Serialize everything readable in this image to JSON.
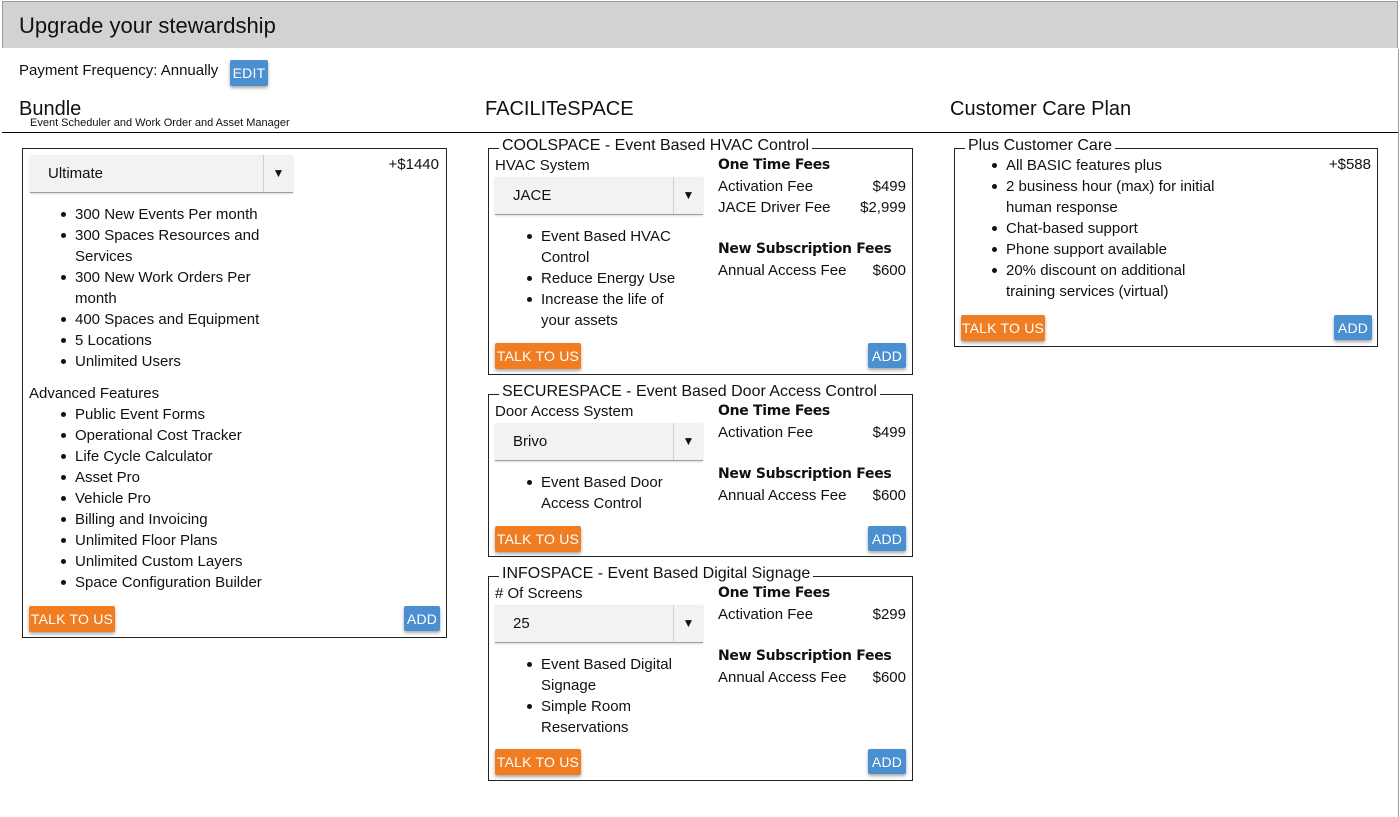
{
  "header": {
    "title": "Upgrade your stewardship"
  },
  "payment": {
    "label": "Payment Frequency: Annually",
    "edit_label": "EDIT"
  },
  "sections": {
    "bundle": "Bundle",
    "bundle_sub": "Event Scheduler and Work Order and Asset Manager",
    "facilitespace": "FACILITeSPACE",
    "customer_care": "Customer Care Plan"
  },
  "bundle": {
    "selected": "Ultimate",
    "price": "+$1440",
    "features": [
      "300 New Events Per month",
      "300 Spaces Resources and Services",
      "300 New Work Orders Per month",
      "400 Spaces and Equipment",
      "5 Locations",
      "Unlimited Users"
    ],
    "advanced_title": "Advanced Features",
    "advanced": [
      "Public Event Forms",
      "Operational Cost Tracker",
      "Life Cycle Calculator",
      "Asset Pro",
      "Vehicle Pro",
      "Billing and Invoicing",
      "Unlimited Floor Plans",
      "Unlimited Custom Layers",
      "Space Configuration Builder"
    ],
    "talk_label": "TALK TO US",
    "add_label": "ADD"
  },
  "coolspace": {
    "title": "COOLSPACE - Event Based HVAC Control",
    "select_label": "HVAC System",
    "selected": "JACE",
    "bullets": [
      "Event Based HVAC Control",
      "Reduce Energy Use",
      "Increase the life of your assets"
    ],
    "one_time_title": "One Time Fees",
    "one_time": [
      {
        "name": "Activation Fee",
        "amount": "$499"
      },
      {
        "name": "JACE Driver Fee",
        "amount": "$2,999"
      }
    ],
    "sub_title": "New Subscription Fees",
    "sub": [
      {
        "name": "Annual Access Fee",
        "amount": "$600"
      }
    ],
    "talk_label": "TALK TO US",
    "add_label": "ADD"
  },
  "securespace": {
    "title": "SECURESPACE - Event Based Door Access Control",
    "select_label": "Door Access System",
    "selected": "Brivo",
    "bullets": [
      "Event Based Door Access Control"
    ],
    "one_time_title": "One Time Fees",
    "one_time": [
      {
        "name": "Activation Fee",
        "amount": "$499"
      }
    ],
    "sub_title": "New Subscription Fees",
    "sub": [
      {
        "name": "Annual Access Fee",
        "amount": "$600"
      }
    ],
    "talk_label": "TALK TO US",
    "add_label": "ADD"
  },
  "infospace": {
    "title": "INFOSPACE - Event Based Digital Signage",
    "select_label": "# Of Screens",
    "selected": "25",
    "bullets": [
      "Event Based Digital Signage",
      "Simple Room Reservations"
    ],
    "one_time_title": "One Time Fees",
    "one_time": [
      {
        "name": "Activation Fee",
        "amount": "$299"
      }
    ],
    "sub_title": "New Subscription Fees",
    "sub": [
      {
        "name": "Annual Access Fee",
        "amount": "$600"
      }
    ],
    "talk_label": "TALK TO US",
    "add_label": "ADD"
  },
  "care": {
    "title": "Plus Customer Care",
    "price": "+$588",
    "bullets": [
      "All BASIC features plus",
      "2 business hour (max) for initial human response",
      "Chat-based support",
      "Phone support available",
      "20% discount on additional training services (virtual)"
    ],
    "talk_label": "TALK TO US",
    "add_label": "ADD"
  },
  "colors": {
    "accent_blue": "#4a90d0",
    "accent_orange": "#f07d22",
    "header_gray": "#d2d2d2"
  }
}
